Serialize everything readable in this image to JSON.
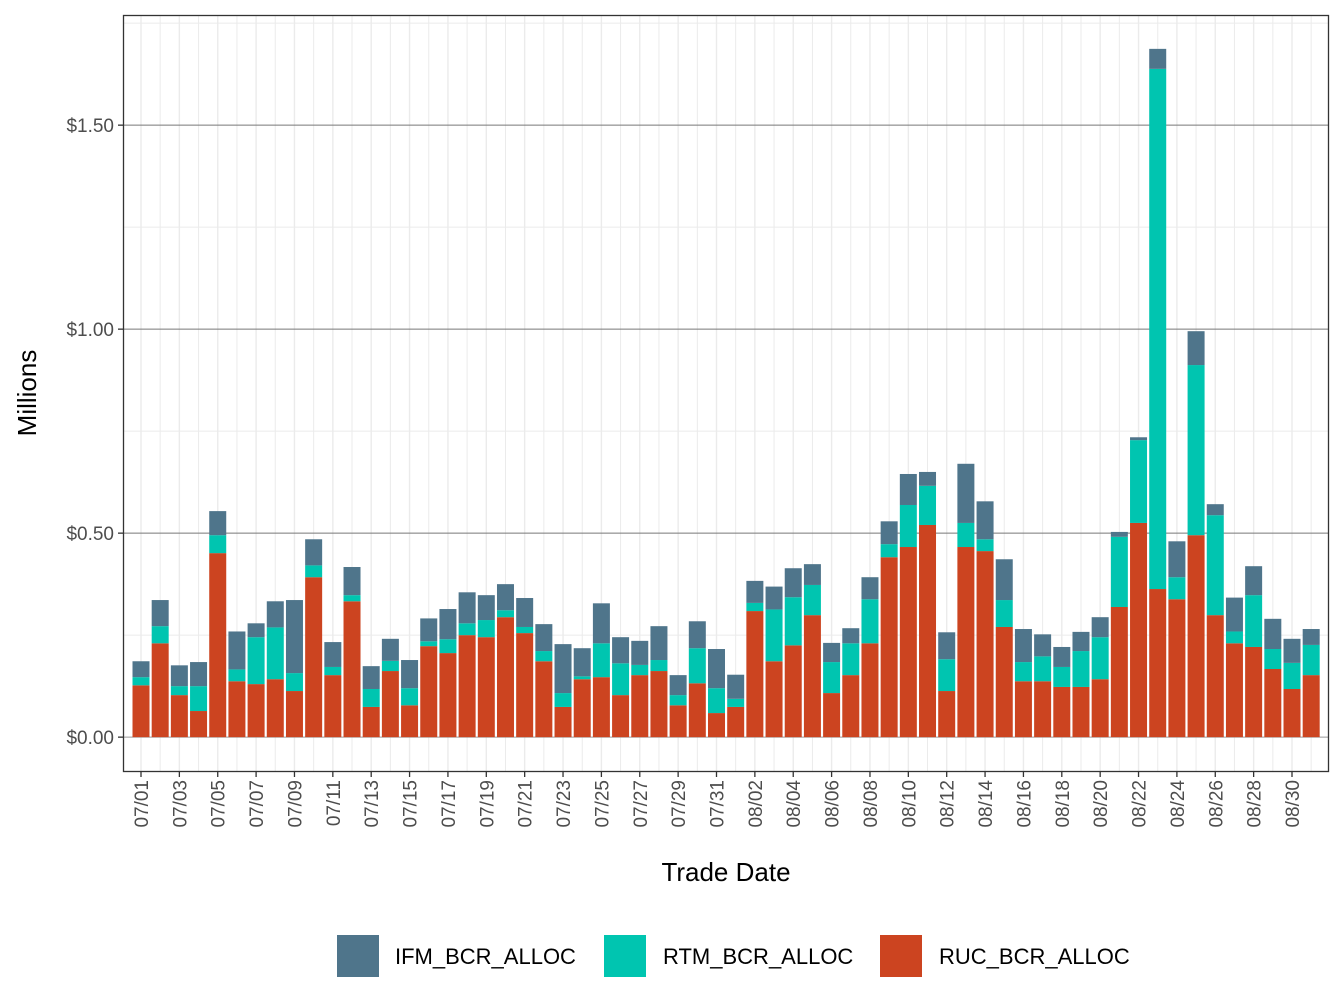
{
  "chart_data": {
    "type": "bar",
    "stacked": true,
    "xlabel": "Trade Date",
    "ylabel": "Millions",
    "ylim": [
      -0.083,
      1.77
    ],
    "yticks": [
      0,
      0.5,
      1.0,
      1.5
    ],
    "ytick_labels": [
      "$0.00",
      "$0.50",
      "$1.00",
      "$1.50"
    ],
    "grid": true,
    "legend_position": "bottom",
    "categories": [
      "07/01",
      "07/02",
      "07/03",
      "07/04",
      "07/05",
      "07/06",
      "07/07",
      "07/08",
      "07/09",
      "07/10",
      "07/11",
      "07/12",
      "07/13",
      "07/14",
      "07/15",
      "07/16",
      "07/17",
      "07/18",
      "07/19",
      "07/20",
      "07/21",
      "07/22",
      "07/23",
      "07/24",
      "07/25",
      "07/26",
      "07/27",
      "07/28",
      "07/29",
      "07/30",
      "07/31",
      "08/01",
      "08/02",
      "08/03",
      "08/04",
      "08/05",
      "08/06",
      "08/07",
      "08/08",
      "08/09",
      "08/10",
      "08/11",
      "08/12",
      "08/13",
      "08/14",
      "08/15",
      "08/16",
      "08/17",
      "08/18",
      "08/19",
      "08/20",
      "08/21",
      "08/22",
      "08/23",
      "08/24",
      "08/25",
      "08/26",
      "08/27",
      "08/28",
      "08/29",
      "08/30",
      "08/31"
    ],
    "tick_labels": [
      "07/01",
      "07/03",
      "07/05",
      "07/07",
      "07/09",
      "07/11",
      "07/13",
      "07/15",
      "07/17",
      "07/19",
      "07/21",
      "07/23",
      "07/25",
      "07/27",
      "07/29",
      "07/31",
      "08/02",
      "08/04",
      "08/06",
      "08/08",
      "08/10",
      "08/12",
      "08/14",
      "08/16",
      "08/18",
      "08/20",
      "08/22",
      "08/24",
      "08/26",
      "08/28",
      "08/30"
    ],
    "series": [
      {
        "name": "RUC_BCR_ALLOC",
        "color": "#CC4420",
        "values": [
          0.127,
          0.23,
          0.103,
          0.064,
          0.451,
          0.137,
          0.13,
          0.142,
          0.113,
          0.392,
          0.152,
          0.333,
          0.074,
          0.162,
          0.078,
          0.223,
          0.206,
          0.25,
          0.245,
          0.294,
          0.255,
          0.186,
          0.074,
          0.142,
          0.147,
          0.103,
          0.152,
          0.162,
          0.078,
          0.132,
          0.059,
          0.074,
          0.309,
          0.186,
          0.225,
          0.299,
          0.108,
          0.152,
          0.23,
          0.441,
          0.466,
          0.52,
          0.113,
          0.466,
          0.456,
          0.27,
          0.137,
          0.137,
          0.123,
          0.123,
          0.142,
          0.319,
          0.525,
          0.363,
          0.338,
          0.495,
          0.299,
          0.23,
          0.221,
          0.167,
          0.118,
          0.152
        ]
      },
      {
        "name": "RTM_BCR_ALLOC",
        "color": "#00C5B0",
        "values": [
          0.02,
          0.042,
          0.022,
          0.061,
          0.044,
          0.029,
          0.115,
          0.127,
          0.044,
          0.029,
          0.02,
          0.015,
          0.044,
          0.025,
          0.042,
          0.012,
          0.034,
          0.029,
          0.042,
          0.017,
          0.015,
          0.025,
          0.034,
          0.007,
          0.083,
          0.078,
          0.025,
          0.027,
          0.025,
          0.086,
          0.061,
          0.02,
          0.02,
          0.127,
          0.118,
          0.074,
          0.076,
          0.078,
          0.108,
          0.032,
          0.103,
          0.096,
          0.078,
          0.059,
          0.029,
          0.066,
          0.047,
          0.061,
          0.049,
          0.088,
          0.103,
          0.172,
          0.203,
          1.275,
          0.054,
          0.417,
          0.245,
          0.029,
          0.127,
          0.049,
          0.064,
          0.074
        ]
      },
      {
        "name": "IFM_BCR_ALLOC",
        "color": "#4F758B",
        "values": [
          0.039,
          0.064,
          0.051,
          0.059,
          0.059,
          0.093,
          0.034,
          0.064,
          0.179,
          0.064,
          0.061,
          0.069,
          0.056,
          0.054,
          0.069,
          0.056,
          0.074,
          0.076,
          0.061,
          0.064,
          0.071,
          0.066,
          0.12,
          0.069,
          0.098,
          0.064,
          0.059,
          0.083,
          0.049,
          0.066,
          0.096,
          0.059,
          0.054,
          0.056,
          0.071,
          0.051,
          0.047,
          0.037,
          0.054,
          0.056,
          0.076,
          0.034,
          0.066,
          0.145,
          0.093,
          0.1,
          0.081,
          0.054,
          0.049,
          0.047,
          0.049,
          0.012,
          0.007,
          0.049,
          0.088,
          0.083,
          0.027,
          0.083,
          0.071,
          0.074,
          0.059,
          0.039
        ]
      }
    ],
    "legend": [
      "IFM_BCR_ALLOC",
      "RTM_BCR_ALLOC",
      "RUC_BCR_ALLOC"
    ]
  }
}
